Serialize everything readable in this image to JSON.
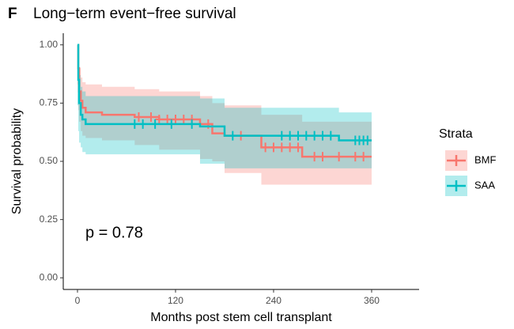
{
  "chart_data": {
    "type": "survival",
    "panel_label": "F",
    "title": "Long−term event−free survival",
    "x_label": "Months post stem cell transplant",
    "y_label": "Survival probability",
    "annotation": "p = 0.78",
    "legend_title": "Strata",
    "xlim": [
      -17.4,
      418.1
    ],
    "ylim": [
      -0.05,
      1.05
    ],
    "xticks": [
      0,
      120,
      240,
      360
    ],
    "yticks": [
      {
        "value": 0,
        "label": "0.00"
      },
      0.25,
      {
        "value": 0.5,
        "label": "0.50"
      },
      0.75,
      {
        "value": 1,
        "label": "1.00"
      }
    ],
    "series": [
      {
        "name": "BMF",
        "color": "#F8766D",
        "x": [
          0,
          1,
          2,
          4,
          6,
          10,
          30,
          70,
          100,
          150,
          165,
          180,
          225,
          275,
          360
        ],
        "values": [
          1.0,
          0.9,
          0.8,
          0.76,
          0.73,
          0.71,
          0.7,
          0.69,
          0.68,
          0.66,
          0.62,
          0.61,
          0.56,
          0.52,
          0.52
        ],
        "upper": [
          1.0,
          0.97,
          0.9,
          0.86,
          0.84,
          0.83,
          0.82,
          0.81,
          0.8,
          0.78,
          0.75,
          0.74,
          0.7,
          0.67,
          0.67
        ],
        "lower": [
          1.0,
          0.83,
          0.72,
          0.67,
          0.63,
          0.61,
          0.6,
          0.59,
          0.57,
          0.55,
          0.51,
          0.5,
          0.45,
          0.4,
          0.4
        ],
        "censored": {
          "x": [
            75,
            90,
            100,
            110,
            120,
            130,
            140,
            160,
            200,
            230,
            240,
            250,
            260,
            270,
            290,
            300,
            320,
            340,
            350
          ],
          "values": [
            0.69,
            0.69,
            0.68,
            0.68,
            0.68,
            0.68,
            0.68,
            0.66,
            0.61,
            0.56,
            0.56,
            0.56,
            0.56,
            0.56,
            0.52,
            0.52,
            0.52,
            0.52,
            0.52
          ]
        }
      },
      {
        "name": "SAA",
        "color": "#00BFC4",
        "x": [
          0,
          1,
          2,
          4,
          6,
          10,
          150,
          180,
          320,
          360
        ],
        "values": [
          1.0,
          0.85,
          0.75,
          0.7,
          0.68,
          0.66,
          0.65,
          0.61,
          0.59,
          0.59
        ],
        "upper": [
          1.0,
          0.95,
          0.87,
          0.82,
          0.8,
          0.78,
          0.77,
          0.73,
          0.71,
          0.71
        ],
        "lower": [
          1.0,
          0.74,
          0.63,
          0.58,
          0.56,
          0.54,
          0.53,
          0.49,
          0.47,
          0.47
        ],
        "censored": {
          "x": [
            70,
            80,
            95,
            115,
            140,
            190,
            250,
            260,
            270,
            280,
            290,
            300,
            310,
            340,
            345,
            350,
            355
          ],
          "values": [
            0.66,
            0.66,
            0.66,
            0.66,
            0.66,
            0.61,
            0.61,
            0.61,
            0.61,
            0.61,
            0.61,
            0.61,
            0.61,
            0.59,
            0.59,
            0.59,
            0.59
          ]
        }
      }
    ]
  }
}
